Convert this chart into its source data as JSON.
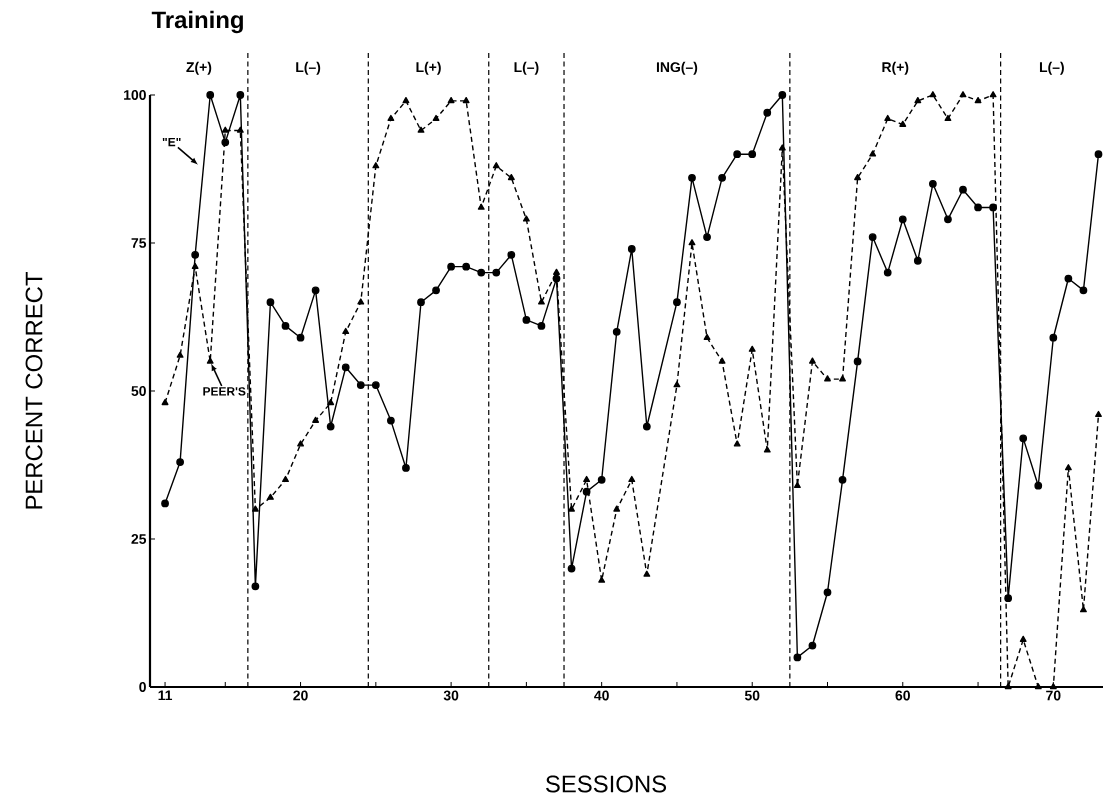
{
  "chart_data": {
    "type": "line",
    "title": "Training",
    "xlabel": "SESSIONS",
    "ylabel": "PERCENT CORRECT",
    "x": [
      11,
      12,
      13,
      14,
      15,
      16,
      17,
      18,
      19,
      20,
      21,
      22,
      23,
      24,
      25,
      26,
      27,
      28,
      29,
      30,
      31,
      32,
      33,
      34,
      35,
      36,
      37,
      38,
      39,
      40,
      41,
      42,
      43,
      44,
      45,
      46,
      47,
      48,
      49,
      50,
      51,
      52,
      53,
      54,
      55,
      56,
      57,
      58,
      59,
      60,
      61,
      62,
      63,
      64,
      65,
      66,
      67,
      68,
      69,
      70,
      71,
      72,
      73
    ],
    "series": [
      {
        "color": "#000000",
        "marker": "circle",
        "line_style": "solid",
        "values": [
          31,
          38,
          73,
          100,
          92,
          100,
          17,
          65,
          61,
          59,
          67,
          44,
          54,
          51,
          51,
          45,
          37,
          65,
          67,
          71,
          71,
          70,
          70,
          73,
          62,
          61,
          69,
          20,
          33,
          35,
          60,
          74,
          44,
          null,
          65,
          86,
          76,
          86,
          90,
          90,
          97,
          100,
          5,
          7,
          16,
          35,
          55,
          76,
          70,
          79,
          72,
          85,
          79,
          84,
          81,
          81,
          15,
          42,
          34,
          59,
          69,
          67,
          90
        ]
      },
      {
        "color": "#000000",
        "marker": "triangle",
        "line_style": "dashed",
        "values": [
          48,
          56,
          71,
          55,
          94,
          94,
          30,
          32,
          35,
          41,
          45,
          48,
          60,
          65,
          88,
          96,
          99,
          94,
          96,
          99,
          99,
          81,
          88,
          86,
          79,
          65,
          70,
          30,
          35,
          18,
          30,
          35,
          19,
          null,
          51,
          75,
          59,
          55,
          41,
          57,
          40,
          91,
          34,
          55,
          52,
          52,
          86,
          90,
          96,
          95,
          99,
          100,
          96,
          100,
          99,
          100,
          0,
          8,
          0,
          0,
          37,
          13,
          46
        ]
      }
    ],
    "xlim": [
      10,
      73.3
    ],
    "ylim": [
      0,
      100
    ],
    "xticks": [
      11,
      {
        "value": 15,
        "label": null
      },
      20,
      {
        "value": 25,
        "label": null
      },
      30,
      {
        "value": 35,
        "label": null
      },
      40,
      {
        "value": 45,
        "label": null
      },
      50,
      {
        "value": 55,
        "label": null
      },
      60,
      {
        "value": 65,
        "label": null
      },
      70
    ],
    "yticks": [
      0,
      25,
      50,
      75,
      100
    ],
    "ref_lines": [
      {
        "axis": "x",
        "value": 16.5,
        "line_style": "dashed"
      },
      {
        "axis": "x",
        "value": 24.5,
        "line_style": "dashed"
      },
      {
        "axis": "x",
        "value": 32.5,
        "line_style": "dashed"
      },
      {
        "axis": "x",
        "value": 37.5,
        "line_style": "dashed"
      },
      {
        "axis": "x",
        "value": 52.5,
        "line_style": "dashed"
      },
      {
        "axis": "x",
        "value": 66.5,
        "line_style": "dashed"
      }
    ],
    "annotations": [
      "Z(+)",
      "L(–)",
      "L(+)",
      "L(–)",
      "ING(–)",
      "R(+)",
      "L(–)",
      {
        "text": "\"E\"",
        "x": 13.3,
        "y": 88
      },
      {
        "text": "PEER'S",
        "x": 14,
        "y": 55
      }
    ]
  }
}
